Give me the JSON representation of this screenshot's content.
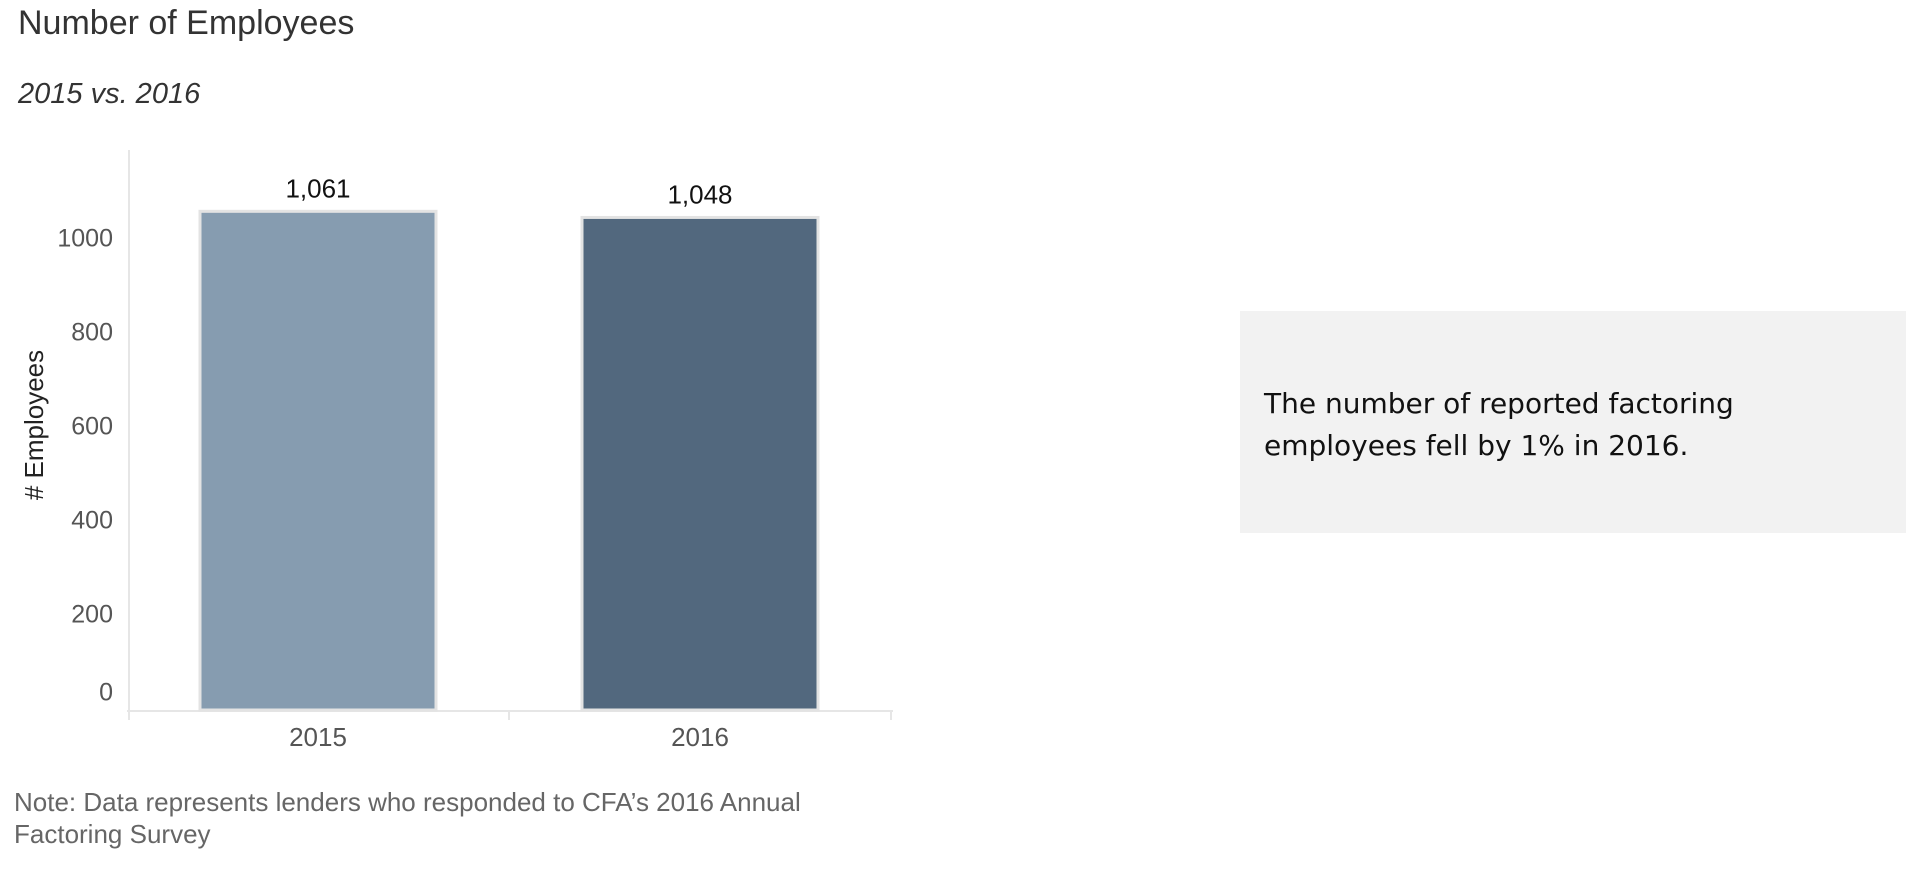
{
  "chart_data": {
    "type": "bar",
    "title": "Number of Employees",
    "subtitle": "2015 vs. 2016",
    "xlabel": "",
    "ylabel": "# Employees",
    "categories": [
      "2015",
      "2016"
    ],
    "values": [
      1061,
      1048
    ],
    "data_labels": [
      "1,061",
      "1,048"
    ],
    "bar_colors": [
      "#869cb0",
      "#52687e"
    ],
    "ylim": [
      0,
      1200
    ],
    "yticks": [
      0,
      200,
      400,
      600,
      800,
      1000
    ],
    "grid": false,
    "legend": "none"
  },
  "note": "Note: Data represents lenders who responded to CFA’s 2016 Annual Factoring Survey",
  "callout": {
    "text": "The number of reported factoring employees fell by 1% in 2016."
  },
  "colors": {
    "axis": "#e6e6e6",
    "tick_text": "#555555",
    "bar_outline": "#e3e3e3",
    "callout_bg": "#f2f2f2"
  }
}
